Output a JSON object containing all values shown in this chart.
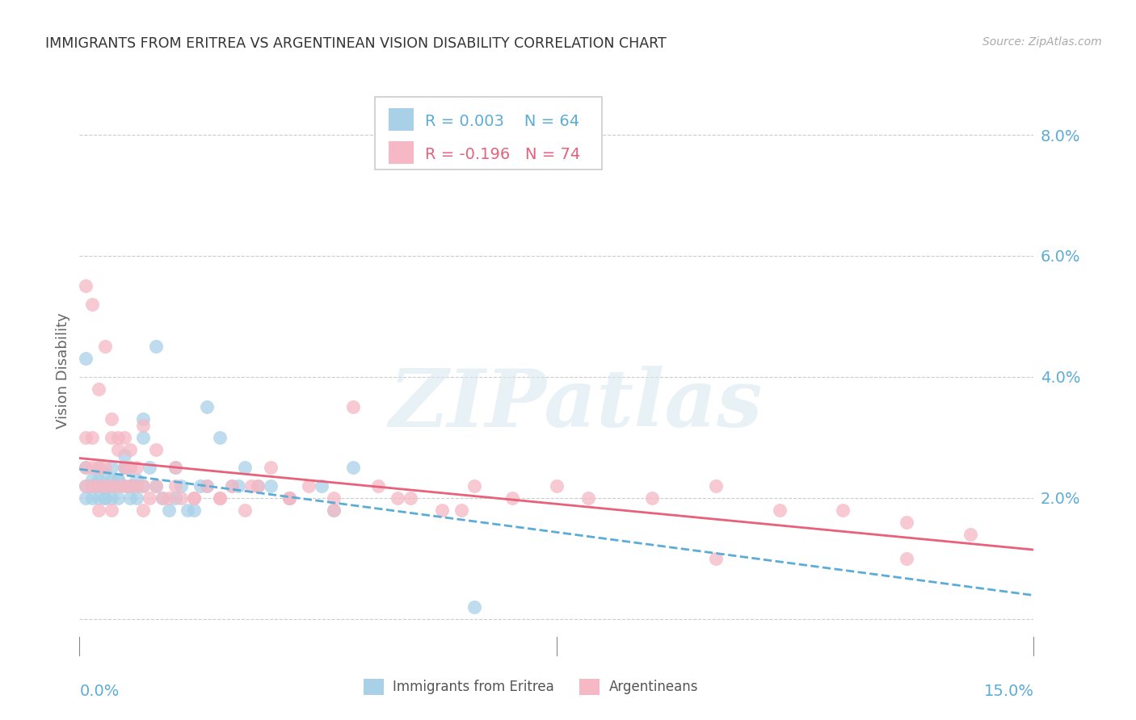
{
  "title": "IMMIGRANTS FROM ERITREA VS ARGENTINEAN VISION DISABILITY CORRELATION CHART",
  "source": "Source: ZipAtlas.com",
  "ylabel": "Vision Disability",
  "y_ticks": [
    0.0,
    0.02,
    0.04,
    0.06,
    0.08
  ],
  "y_tick_labels": [
    "",
    "2.0%",
    "4.0%",
    "6.0%",
    "8.0%"
  ],
  "x_tick_labels": [
    "0.0%",
    "15.0%"
  ],
  "xlim": [
    0.0,
    0.15
  ],
  "ylim": [
    -0.006,
    0.088
  ],
  "legend_blue_r": "R = 0.003",
  "legend_blue_n": "N = 64",
  "legend_pink_r": "R = -0.196",
  "legend_pink_n": "N = 74",
  "legend_label_blue": "Immigrants from Eritrea",
  "legend_label_pink": "Argentineans",
  "color_blue": "#a8d1e8",
  "color_pink": "#f5b8c4",
  "color_blue_line": "#5bacd6",
  "color_pink_line": "#e8607a",
  "color_axis_labels": "#5bacd6",
  "color_grid": "#cccccc",
  "color_title": "#333333",
  "color_source": "#aaaaaa",
  "watermark": "ZIPatlas",
  "blue_x": [
    0.001,
    0.001,
    0.001,
    0.002,
    0.002,
    0.002,
    0.003,
    0.003,
    0.003,
    0.003,
    0.004,
    0.004,
    0.004,
    0.005,
    0.005,
    0.005,
    0.005,
    0.006,
    0.006,
    0.006,
    0.007,
    0.007,
    0.007,
    0.008,
    0.008,
    0.008,
    0.009,
    0.009,
    0.01,
    0.01,
    0.011,
    0.012,
    0.013,
    0.014,
    0.015,
    0.016,
    0.017,
    0.018,
    0.019,
    0.02,
    0.022,
    0.024,
    0.026,
    0.028,
    0.03,
    0.033,
    0.038,
    0.043,
    0.001,
    0.002,
    0.003,
    0.004,
    0.005,
    0.006,
    0.007,
    0.008,
    0.009,
    0.01,
    0.012,
    0.015,
    0.02,
    0.025,
    0.04,
    0.062
  ],
  "blue_y": [
    0.022,
    0.02,
    0.025,
    0.022,
    0.023,
    0.02,
    0.025,
    0.022,
    0.02,
    0.023,
    0.024,
    0.022,
    0.02,
    0.025,
    0.023,
    0.022,
    0.02,
    0.022,
    0.023,
    0.02,
    0.027,
    0.025,
    0.022,
    0.025,
    0.022,
    0.02,
    0.022,
    0.02,
    0.022,
    0.03,
    0.025,
    0.022,
    0.02,
    0.018,
    0.02,
    0.022,
    0.018,
    0.018,
    0.022,
    0.022,
    0.03,
    0.022,
    0.025,
    0.022,
    0.022,
    0.02,
    0.022,
    0.025,
    0.043,
    0.022,
    0.022,
    0.02,
    0.022,
    0.023,
    0.025,
    0.022,
    0.023,
    0.033,
    0.045,
    0.025,
    0.035,
    0.022,
    0.018,
    0.002
  ],
  "pink_x": [
    0.001,
    0.001,
    0.001,
    0.002,
    0.002,
    0.002,
    0.003,
    0.003,
    0.003,
    0.004,
    0.004,
    0.005,
    0.005,
    0.005,
    0.006,
    0.006,
    0.007,
    0.007,
    0.008,
    0.008,
    0.009,
    0.01,
    0.01,
    0.011,
    0.012,
    0.013,
    0.014,
    0.015,
    0.016,
    0.018,
    0.02,
    0.022,
    0.024,
    0.026,
    0.028,
    0.03,
    0.033,
    0.036,
    0.04,
    0.043,
    0.047,
    0.052,
    0.057,
    0.062,
    0.068,
    0.075,
    0.08,
    0.09,
    0.1,
    0.11,
    0.12,
    0.13,
    0.14,
    0.001,
    0.002,
    0.003,
    0.004,
    0.005,
    0.006,
    0.007,
    0.008,
    0.009,
    0.01,
    0.012,
    0.015,
    0.018,
    0.022,
    0.027,
    0.033,
    0.04,
    0.05,
    0.06,
    0.1,
    0.13
  ],
  "pink_y": [
    0.025,
    0.022,
    0.03,
    0.025,
    0.022,
    0.03,
    0.025,
    0.022,
    0.018,
    0.025,
    0.022,
    0.03,
    0.022,
    0.018,
    0.028,
    0.022,
    0.025,
    0.022,
    0.025,
    0.022,
    0.022,
    0.022,
    0.018,
    0.02,
    0.022,
    0.02,
    0.02,
    0.022,
    0.02,
    0.02,
    0.022,
    0.02,
    0.022,
    0.018,
    0.022,
    0.025,
    0.02,
    0.022,
    0.02,
    0.035,
    0.022,
    0.02,
    0.018,
    0.022,
    0.02,
    0.022,
    0.02,
    0.02,
    0.022,
    0.018,
    0.018,
    0.016,
    0.014,
    0.055,
    0.052,
    0.038,
    0.045,
    0.033,
    0.03,
    0.03,
    0.028,
    0.025,
    0.032,
    0.028,
    0.025,
    0.02,
    0.02,
    0.022,
    0.02,
    0.018,
    0.02,
    0.018,
    0.01,
    0.01
  ]
}
